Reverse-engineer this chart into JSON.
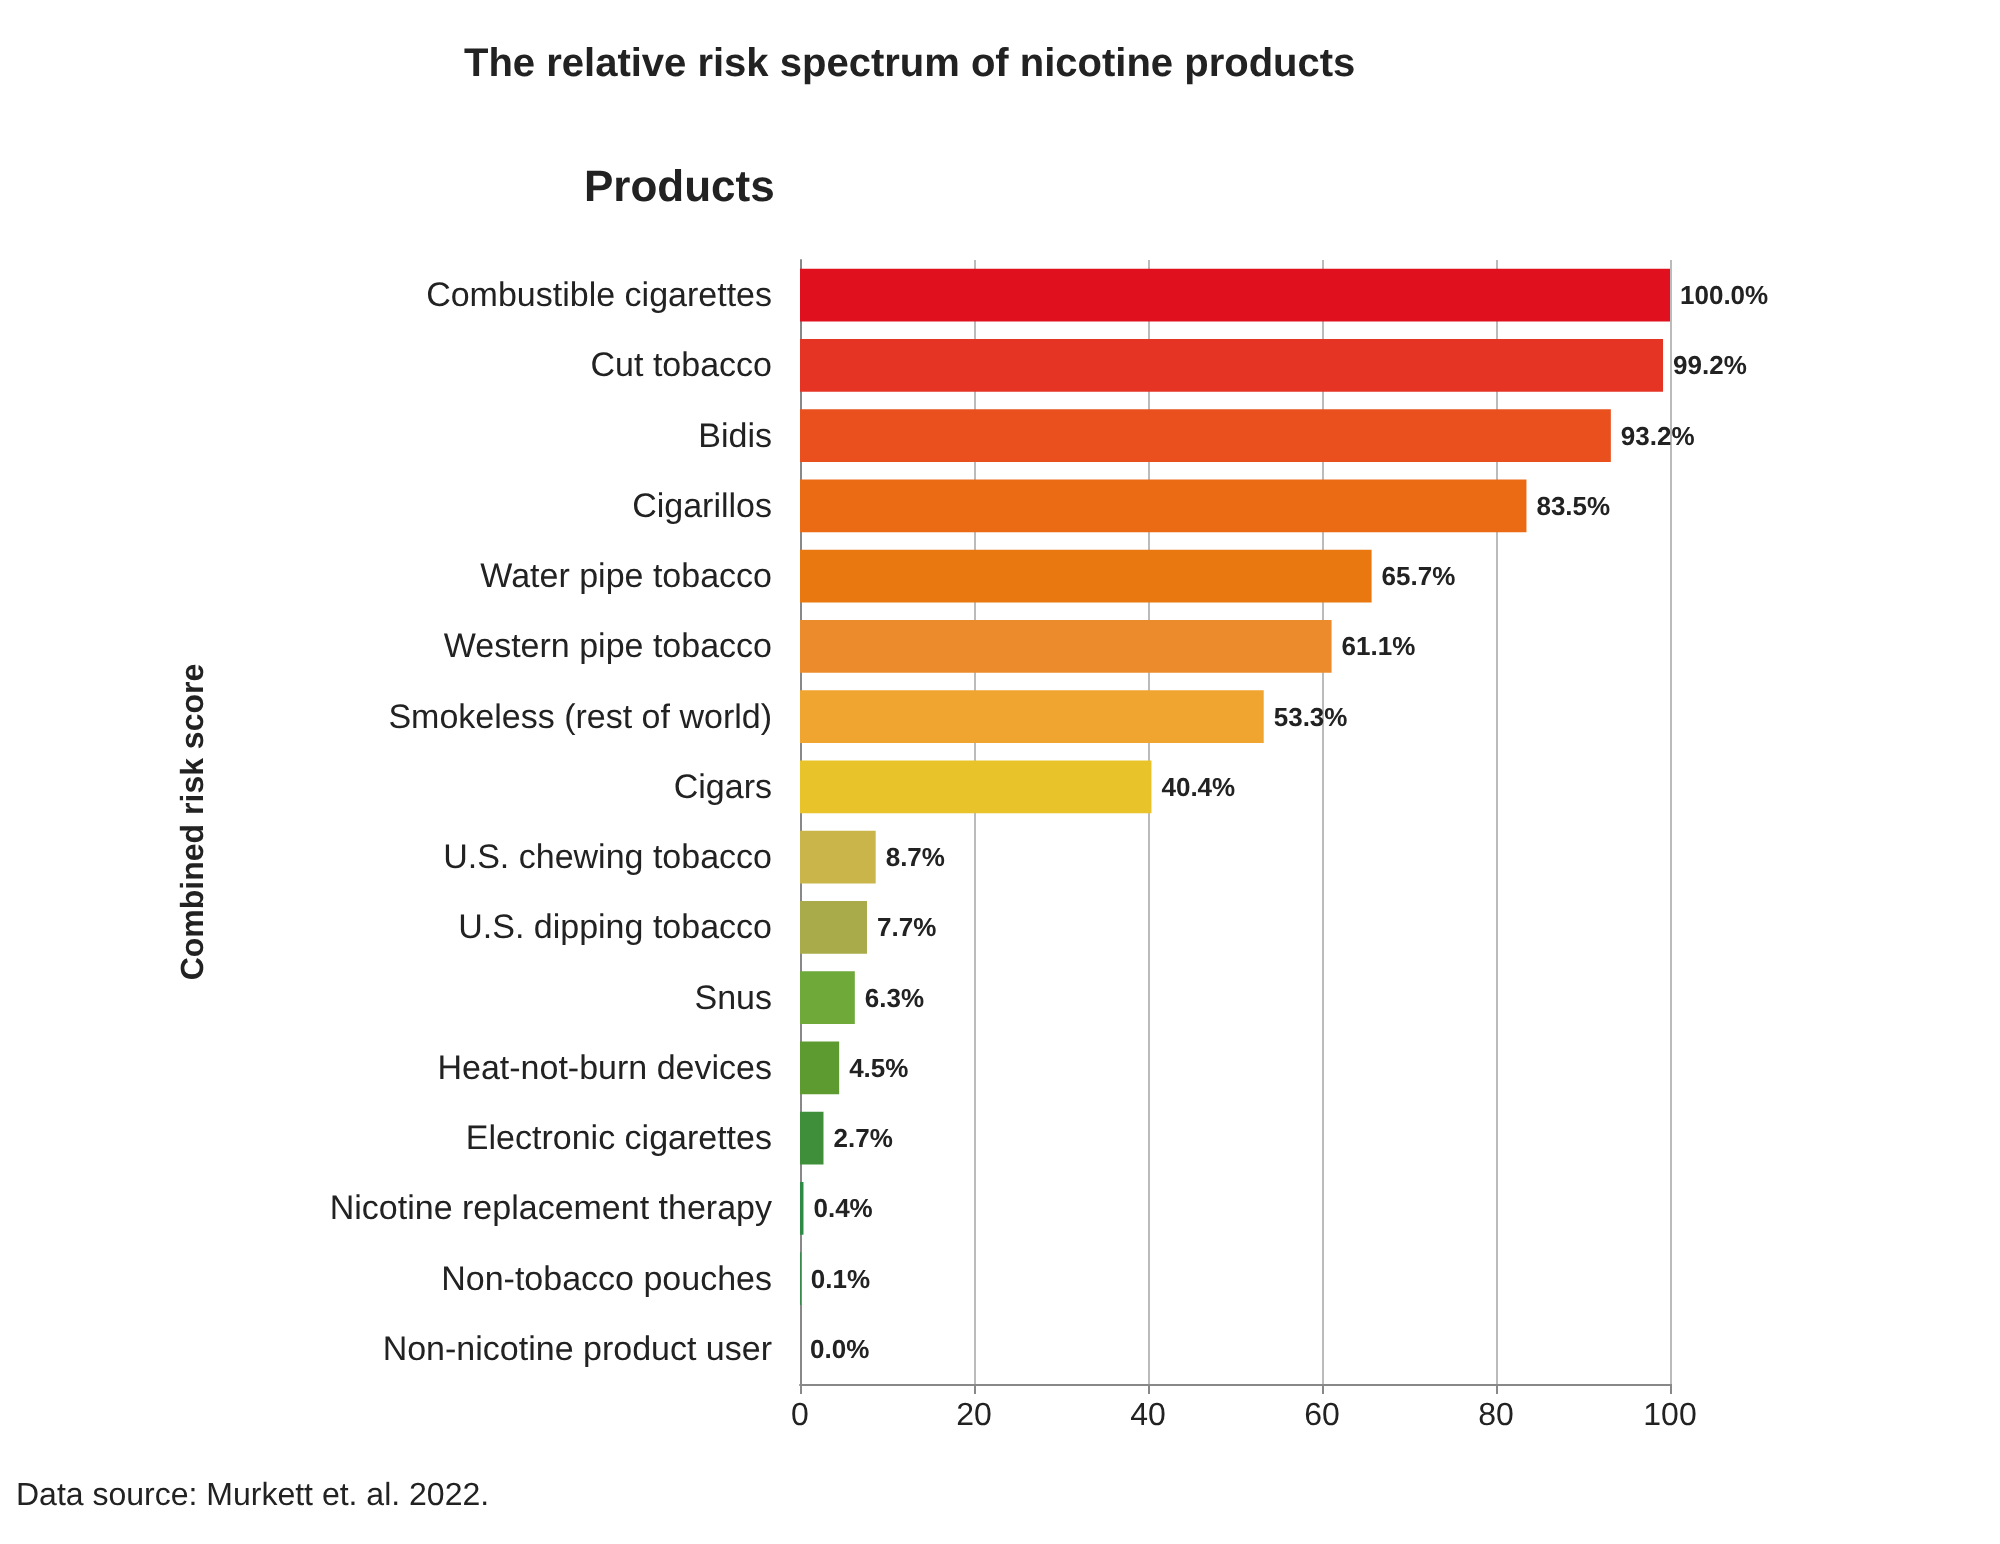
{
  "chart_data": {
    "type": "bar",
    "orientation": "horizontal",
    "title": "The relative risk spectrum of nicotine products",
    "ylabel": "Combined risk score",
    "categories": [
      "Combustible cigarettes",
      "Cut tobacco",
      "Bidis",
      "Cigarillos",
      "Water pipe tobacco",
      "Western pipe tobacco",
      "Smokeless (rest of world)",
      "Cigars",
      "U.S. chewing tobacco",
      "U.S. dipping tobacco",
      "Snus",
      "Heat-not-burn devices",
      "Electronic cigarettes",
      "Nicotine replacement therapy",
      "Non-tobacco pouches",
      "Non-nicotine product user"
    ],
    "values": [
      100.0,
      99.2,
      93.2,
      83.5,
      65.7,
      61.1,
      53.3,
      40.4,
      8.7,
      7.7,
      6.3,
      4.5,
      2.7,
      0.4,
      0.1,
      0.0
    ],
    "value_labels": [
      "100.0%",
      "99.2%",
      "93.2%",
      "83.5%",
      "65.7%",
      "61.1%",
      "53.3%",
      "40.4%",
      "8.7%",
      "7.7%",
      "6.3%",
      "4.5%",
      "2.7%",
      "0.4%",
      "0.1%",
      "0.0%"
    ],
    "colors": [
      "#e0101f",
      "#e53324",
      "#e9501e",
      "#eb6a14",
      "#e8780f",
      "#ec8b2c",
      "#f0a530",
      "#e8c42a",
      "#c9b54a",
      "#a9ab4a",
      "#6ea93a",
      "#5d9a2f",
      "#3f8f3a",
      "#2e8a45",
      "#2e8a45",
      "#2e8a45"
    ],
    "xlim": [
      0,
      100
    ],
    "xticks": [
      0,
      20,
      40,
      60,
      80,
      100
    ],
    "grid": "x",
    "annotations": [
      "Products",
      "Data source: Murkett et. al. 2022."
    ]
  }
}
